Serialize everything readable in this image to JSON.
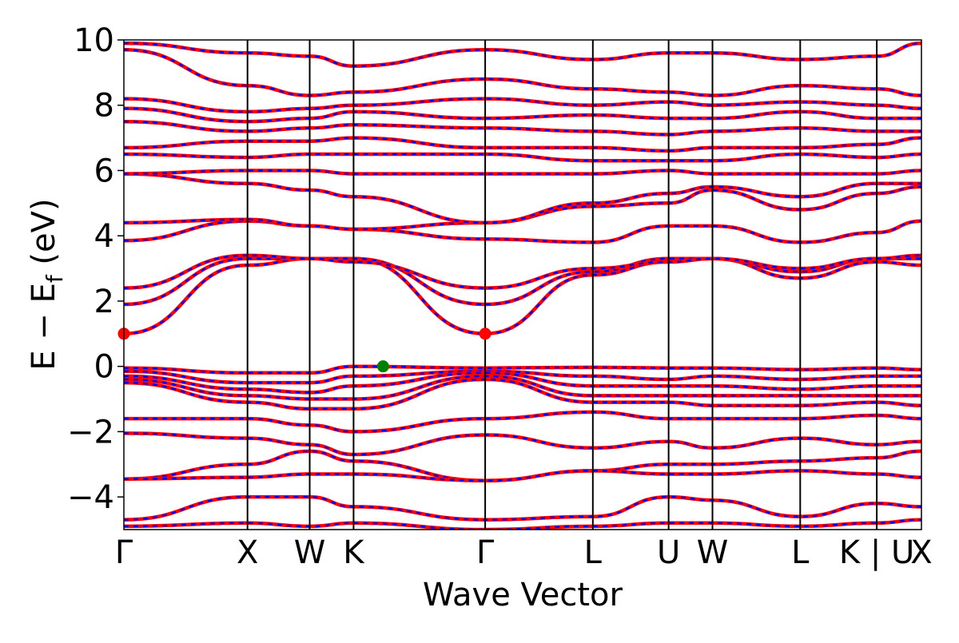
{
  "chart_data": {
    "type": "line",
    "title": "",
    "xlabel": "Wave Vector",
    "ylabel": "E − E_f (eV)",
    "ylabel_main": "E − E",
    "ylabel_sub": "f",
    "ylabel_tail": " (eV)",
    "ylim": [
      -5,
      10
    ],
    "yticks": [
      -4,
      -2,
      0,
      2,
      4,
      6,
      8,
      10
    ],
    "ytick_labels": [
      "−4",
      "−2",
      "0",
      "2",
      "4",
      "6",
      "8",
      "10"
    ],
    "grid": false,
    "xlim": [
      0,
      1
    ],
    "kpoints": [
      {
        "label": "Γ",
        "x": 0.0
      },
      {
        "label": "X",
        "x": 0.155
      },
      {
        "label": "W",
        "x": 0.233
      },
      {
        "label": "K",
        "x": 0.288
      },
      {
        "label": "Γ",
        "x": 0.453
      },
      {
        "label": "L",
        "x": 0.588
      },
      {
        "label": "U",
        "x": 0.683
      },
      {
        "label": "W",
        "x": 0.738
      },
      {
        "label": "L",
        "x": 0.848
      },
      {
        "label": "K | U",
        "x": 0.944
      },
      {
        "label": "X",
        "x": 1.0
      }
    ],
    "band_colors": {
      "line": "#ff0000",
      "dash": "#0000ff"
    },
    "series": [
      {
        "values": [
          -0.05,
          -0.2,
          -0.2,
          0.0,
          -0.05,
          -0.03,
          -0.05,
          -0.05,
          -0.1,
          -0.05,
          -0.1
        ]
      },
      {
        "values": [
          -0.15,
          -0.5,
          -0.5,
          -0.3,
          -0.15,
          -0.3,
          -0.4,
          -0.3,
          -0.4,
          -0.3,
          -0.3
        ]
      },
      {
        "values": [
          -0.3,
          -0.7,
          -0.8,
          -0.6,
          -0.2,
          -0.6,
          -0.6,
          -0.6,
          -0.7,
          -0.6,
          -0.6
        ]
      },
      {
        "values": [
          -0.4,
          -0.9,
          -1.0,
          -1.0,
          -0.3,
          -0.9,
          -0.9,
          -0.9,
          -0.9,
          -0.9,
          -0.9
        ]
      },
      {
        "values": [
          -0.5,
          -1.1,
          -1.3,
          -1.3,
          -0.4,
          -1.1,
          -1.1,
          -1.2,
          -1.2,
          -1.1,
          -1.2
        ]
      },
      {
        "values": [
          -1.6,
          -1.6,
          -1.8,
          -2.0,
          -1.6,
          -1.4,
          -1.6,
          -1.6,
          -1.6,
          -1.5,
          -1.6
        ]
      },
      {
        "values": [
          -2.05,
          -2.2,
          -2.4,
          -2.7,
          -2.1,
          -2.5,
          -2.3,
          -2.5,
          -2.2,
          -2.4,
          -2.3
        ]
      },
      {
        "values": [
          -3.45,
          -3.0,
          -2.6,
          -2.9,
          -3.5,
          -3.2,
          -3.0,
          -3.0,
          -2.9,
          -2.8,
          -2.6
        ]
      },
      {
        "values": [
          -3.45,
          -3.4,
          -3.3,
          -3.3,
          -3.5,
          -3.2,
          -3.3,
          -3.3,
          -3.2,
          -3.3,
          -3.4
        ]
      },
      {
        "values": [
          -4.7,
          -4.0,
          -4.0,
          -4.3,
          -4.7,
          -4.6,
          -4.0,
          -4.1,
          -4.6,
          -4.2,
          -4.3
        ]
      },
      {
        "values": [
          -4.9,
          -4.8,
          -4.9,
          -4.8,
          -5.0,
          -4.9,
          -4.8,
          -4.8,
          -4.9,
          -4.8,
          -4.7
        ]
      },
      {
        "values": [
          1.0,
          3.1,
          3.3,
          3.3,
          1.0,
          2.8,
          3.2,
          3.3,
          2.7,
          3.2,
          3.1
        ]
      },
      {
        "values": [
          1.9,
          3.3,
          3.3,
          3.3,
          1.9,
          2.9,
          3.3,
          3.3,
          2.9,
          3.3,
          3.3
        ]
      },
      {
        "values": [
          2.4,
          3.4,
          3.3,
          3.2,
          2.4,
          3.0,
          3.2,
          3.3,
          3.0,
          3.3,
          3.4
        ]
      },
      {
        "values": [
          3.85,
          4.45,
          4.3,
          4.2,
          3.9,
          3.8,
          4.3,
          4.3,
          3.8,
          4.1,
          4.45
        ]
      },
      {
        "values": [
          4.4,
          4.5,
          4.3,
          4.2,
          4.4,
          4.9,
          5.0,
          5.4,
          4.8,
          5.3,
          5.5
        ]
      },
      {
        "values": [
          5.9,
          5.6,
          5.4,
          5.2,
          4.4,
          5.0,
          5.3,
          5.5,
          5.2,
          5.6,
          5.6
        ]
      },
      {
        "values": [
          5.9,
          6.0,
          6.0,
          5.9,
          5.9,
          5.9,
          6.0,
          5.9,
          5.9,
          5.9,
          6.0
        ]
      },
      {
        "values": [
          6.5,
          6.4,
          6.5,
          6.5,
          6.5,
          6.3,
          6.3,
          6.3,
          6.5,
          6.4,
          6.5
        ]
      },
      {
        "values": [
          6.7,
          6.9,
          6.9,
          7.0,
          6.7,
          6.7,
          6.6,
          6.7,
          6.7,
          6.8,
          7.0
        ]
      },
      {
        "values": [
          7.5,
          7.2,
          7.3,
          7.4,
          7.3,
          7.2,
          7.1,
          7.2,
          7.3,
          7.2,
          7.2
        ]
      },
      {
        "values": [
          7.9,
          7.5,
          7.6,
          7.8,
          7.6,
          7.7,
          7.6,
          7.6,
          7.8,
          7.6,
          7.6
        ]
      },
      {
        "values": [
          8.2,
          7.8,
          7.9,
          8.0,
          8.2,
          8.0,
          8.1,
          8.0,
          8.1,
          8.0,
          7.9
        ]
      },
      {
        "values": [
          9.7,
          8.6,
          8.3,
          8.4,
          8.8,
          8.5,
          8.4,
          8.3,
          8.6,
          8.5,
          8.3
        ]
      },
      {
        "values": [
          9.9,
          9.6,
          9.5,
          9.2,
          9.7,
          9.4,
          9.6,
          9.6,
          9.4,
          9.5,
          9.9
        ]
      }
    ],
    "markers": [
      {
        "name": "CBM",
        "x": 0.0,
        "y": 1.0,
        "color": "#ff0000"
      },
      {
        "name": "CBM",
        "x": 0.453,
        "y": 1.0,
        "color": "#ff0000"
      },
      {
        "name": "VBM",
        "x": 0.325,
        "y": 0.0,
        "color": "#008000"
      }
    ]
  }
}
